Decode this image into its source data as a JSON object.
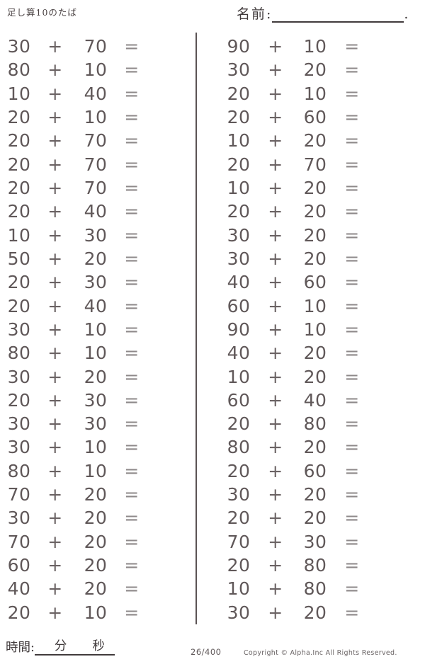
{
  "header": {
    "title": "足し算10のたば",
    "name_label": "名前:",
    "name_line_suffix": "."
  },
  "problems": {
    "operator": "+",
    "equals": "=",
    "left": [
      {
        "a": "30",
        "b": "70"
      },
      {
        "a": "80",
        "b": "10"
      },
      {
        "a": "10",
        "b": "40"
      },
      {
        "a": "20",
        "b": "10"
      },
      {
        "a": "20",
        "b": "70"
      },
      {
        "a": "20",
        "b": "70"
      },
      {
        "a": "20",
        "b": "70"
      },
      {
        "a": "20",
        "b": "40"
      },
      {
        "a": "10",
        "b": "30"
      },
      {
        "a": "50",
        "b": "20"
      },
      {
        "a": "20",
        "b": "30"
      },
      {
        "a": "20",
        "b": "40"
      },
      {
        "a": "30",
        "b": "10"
      },
      {
        "a": "80",
        "b": "10"
      },
      {
        "a": "30",
        "b": "20"
      },
      {
        "a": "20",
        "b": "30"
      },
      {
        "a": "30",
        "b": "30"
      },
      {
        "a": "30",
        "b": "10"
      },
      {
        "a": "80",
        "b": "10"
      },
      {
        "a": "70",
        "b": "20"
      },
      {
        "a": "30",
        "b": "20"
      },
      {
        "a": "70",
        "b": "20"
      },
      {
        "a": "60",
        "b": "20"
      },
      {
        "a": "40",
        "b": "20"
      },
      {
        "a": "20",
        "b": "10"
      }
    ],
    "right": [
      {
        "a": "90",
        "b": "10"
      },
      {
        "a": "30",
        "b": "20"
      },
      {
        "a": "20",
        "b": "10"
      },
      {
        "a": "20",
        "b": "60"
      },
      {
        "a": "10",
        "b": "20"
      },
      {
        "a": "20",
        "b": "70"
      },
      {
        "a": "10",
        "b": "20"
      },
      {
        "a": "20",
        "b": "20"
      },
      {
        "a": "30",
        "b": "20"
      },
      {
        "a": "30",
        "b": "20"
      },
      {
        "a": "40",
        "b": "60"
      },
      {
        "a": "60",
        "b": "10"
      },
      {
        "a": "90",
        "b": "10"
      },
      {
        "a": "40",
        "b": "20"
      },
      {
        "a": "10",
        "b": "20"
      },
      {
        "a": "60",
        "b": "40"
      },
      {
        "a": "20",
        "b": "80"
      },
      {
        "a": "80",
        "b": "20"
      },
      {
        "a": "20",
        "b": "60"
      },
      {
        "a": "30",
        "b": "20"
      },
      {
        "a": "20",
        "b": "20"
      },
      {
        "a": "70",
        "b": "30"
      },
      {
        "a": "20",
        "b": "80"
      },
      {
        "a": "10",
        "b": "80"
      },
      {
        "a": "30",
        "b": "20"
      }
    ]
  },
  "footer": {
    "time_label": "時間:",
    "minutes_label": "分",
    "seconds_label": "秒",
    "page_number": "26/400",
    "copyright": "Copyright ©  Alpha.Inc All Rights Reserved."
  },
  "colors": {
    "paper": "#ffffff",
    "ink": "#605859",
    "equals": "#8e898a",
    "divider": "#5b5354",
    "header_text": "#413b3c"
  }
}
